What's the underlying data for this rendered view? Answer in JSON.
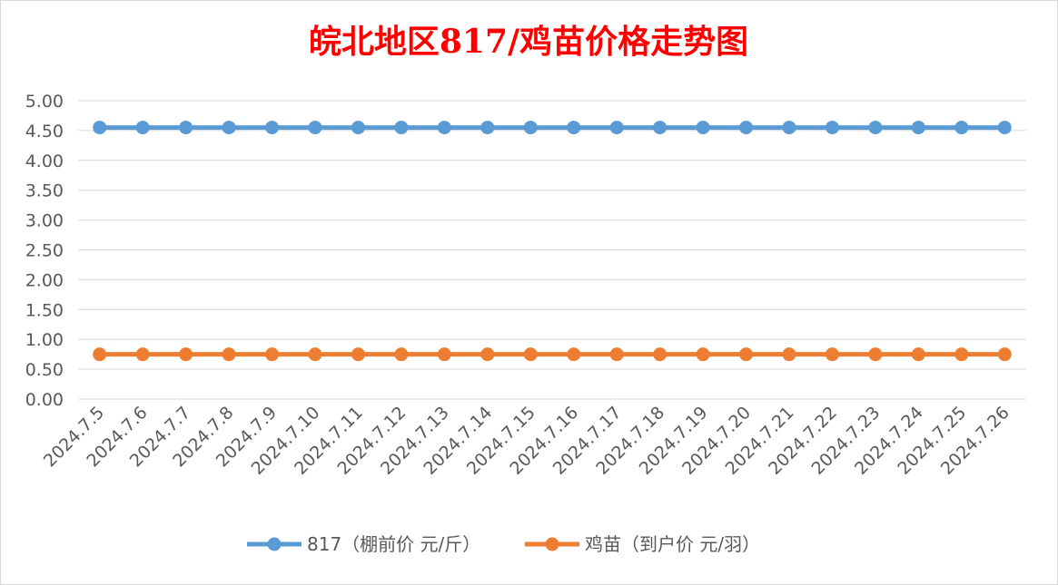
{
  "chart_data": {
    "type": "line",
    "title": "皖北地区817/鸡苗价格走势图",
    "xlabel": "",
    "ylabel": "",
    "categories": [
      "2024.7.5",
      "2024.7.6",
      "2024.7.7",
      "2024.7.8",
      "2024.7.9",
      "2024.7.10",
      "2024.7.11",
      "2024.7.12",
      "2024.7.13",
      "2024.7.14",
      "2024.7.15",
      "2024.7.16",
      "2024.7.17",
      "2024.7.18",
      "2024.7.19",
      "2024.7.20",
      "2024.7.21",
      "2024.7.22",
      "2024.7.23",
      "2024.7.24",
      "2024.7.25",
      "2024.7.26"
    ],
    "y_ticks": [
      "0.00",
      "0.50",
      "1.00",
      "1.50",
      "2.00",
      "2.50",
      "3.00",
      "3.50",
      "4.00",
      "4.50",
      "5.00"
    ],
    "ylim": [
      0,
      5
    ],
    "grid": true,
    "legend_position": "bottom",
    "series": [
      {
        "name": "817（棚前价 元/斤）",
        "color": "#5b9bd5",
        "values": [
          4.55,
          4.55,
          4.55,
          4.55,
          4.55,
          4.55,
          4.55,
          4.55,
          4.55,
          4.55,
          4.55,
          4.55,
          4.55,
          4.55,
          4.55,
          4.55,
          4.55,
          4.55,
          4.55,
          4.55,
          4.55,
          4.55
        ]
      },
      {
        "name": "鸡苗（到户价 元/羽）",
        "color": "#ed7d31",
        "values": [
          0.75,
          0.75,
          0.75,
          0.75,
          0.75,
          0.75,
          0.75,
          0.75,
          0.75,
          0.75,
          0.75,
          0.75,
          0.75,
          0.75,
          0.75,
          0.75,
          0.75,
          0.75,
          0.75,
          0.75,
          0.75,
          0.75
        ]
      }
    ]
  }
}
